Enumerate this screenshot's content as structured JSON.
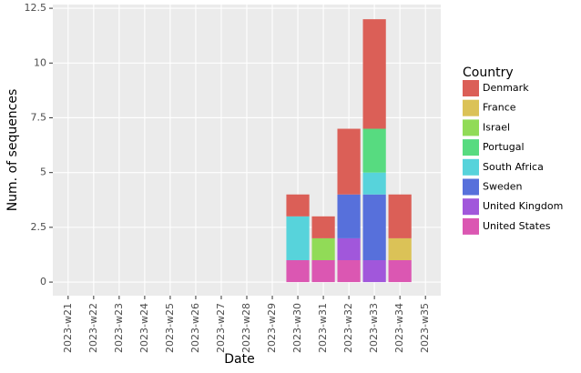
{
  "chart_data": {
    "type": "bar",
    "stacked": true,
    "x_label": "Date",
    "y_label": "Num. of sequences",
    "legend_title": "Country",
    "categories": [
      "2023-w21",
      "2023-w22",
      "2023-w23",
      "2023-w24",
      "2023-w25",
      "2023-w26",
      "2023-w27",
      "2023-w28",
      "2023-w29",
      "2023-w30",
      "2023-w31",
      "2023-w32",
      "2023-w33",
      "2023-w34",
      "2023-w35"
    ],
    "series": [
      {
        "name": "Denmark",
        "color": "#db5f57",
        "values": [
          null,
          null,
          null,
          null,
          null,
          null,
          null,
          null,
          null,
          1,
          1,
          3,
          5,
          2,
          null
        ]
      },
      {
        "name": "France",
        "color": "#dbc257",
        "values": [
          null,
          null,
          null,
          null,
          null,
          null,
          null,
          null,
          null,
          null,
          null,
          null,
          null,
          1,
          null
        ]
      },
      {
        "name": "Israel",
        "color": "#91db57",
        "values": [
          null,
          null,
          null,
          null,
          null,
          null,
          null,
          null,
          null,
          null,
          1,
          null,
          null,
          null,
          null
        ]
      },
      {
        "name": "Portugal",
        "color": "#57db80",
        "values": [
          null,
          null,
          null,
          null,
          null,
          null,
          null,
          null,
          null,
          null,
          null,
          null,
          2,
          null,
          null
        ]
      },
      {
        "name": "South Africa",
        "color": "#57d3db",
        "values": [
          null,
          null,
          null,
          null,
          null,
          null,
          null,
          null,
          null,
          2,
          null,
          null,
          1,
          null,
          null
        ]
      },
      {
        "name": "Sweden",
        "color": "#5770db",
        "values": [
          null,
          null,
          null,
          null,
          null,
          null,
          null,
          null,
          null,
          null,
          null,
          2,
          3,
          null,
          null
        ]
      },
      {
        "name": "United Kingdom",
        "color": "#a157db",
        "values": [
          null,
          null,
          null,
          null,
          null,
          null,
          null,
          null,
          null,
          null,
          null,
          1,
          1,
          null,
          null
        ]
      },
      {
        "name": "United States",
        "color": "#db57b2",
        "values": [
          null,
          null,
          null,
          null,
          null,
          null,
          null,
          null,
          null,
          1,
          1,
          1,
          null,
          1,
          null
        ]
      }
    ],
    "ylim": [
      -0.62,
      12.67
    ],
    "yticks": [
      0,
      2.5,
      5,
      7.5,
      10,
      12.5
    ],
    "grid": true,
    "legend": "right"
  }
}
